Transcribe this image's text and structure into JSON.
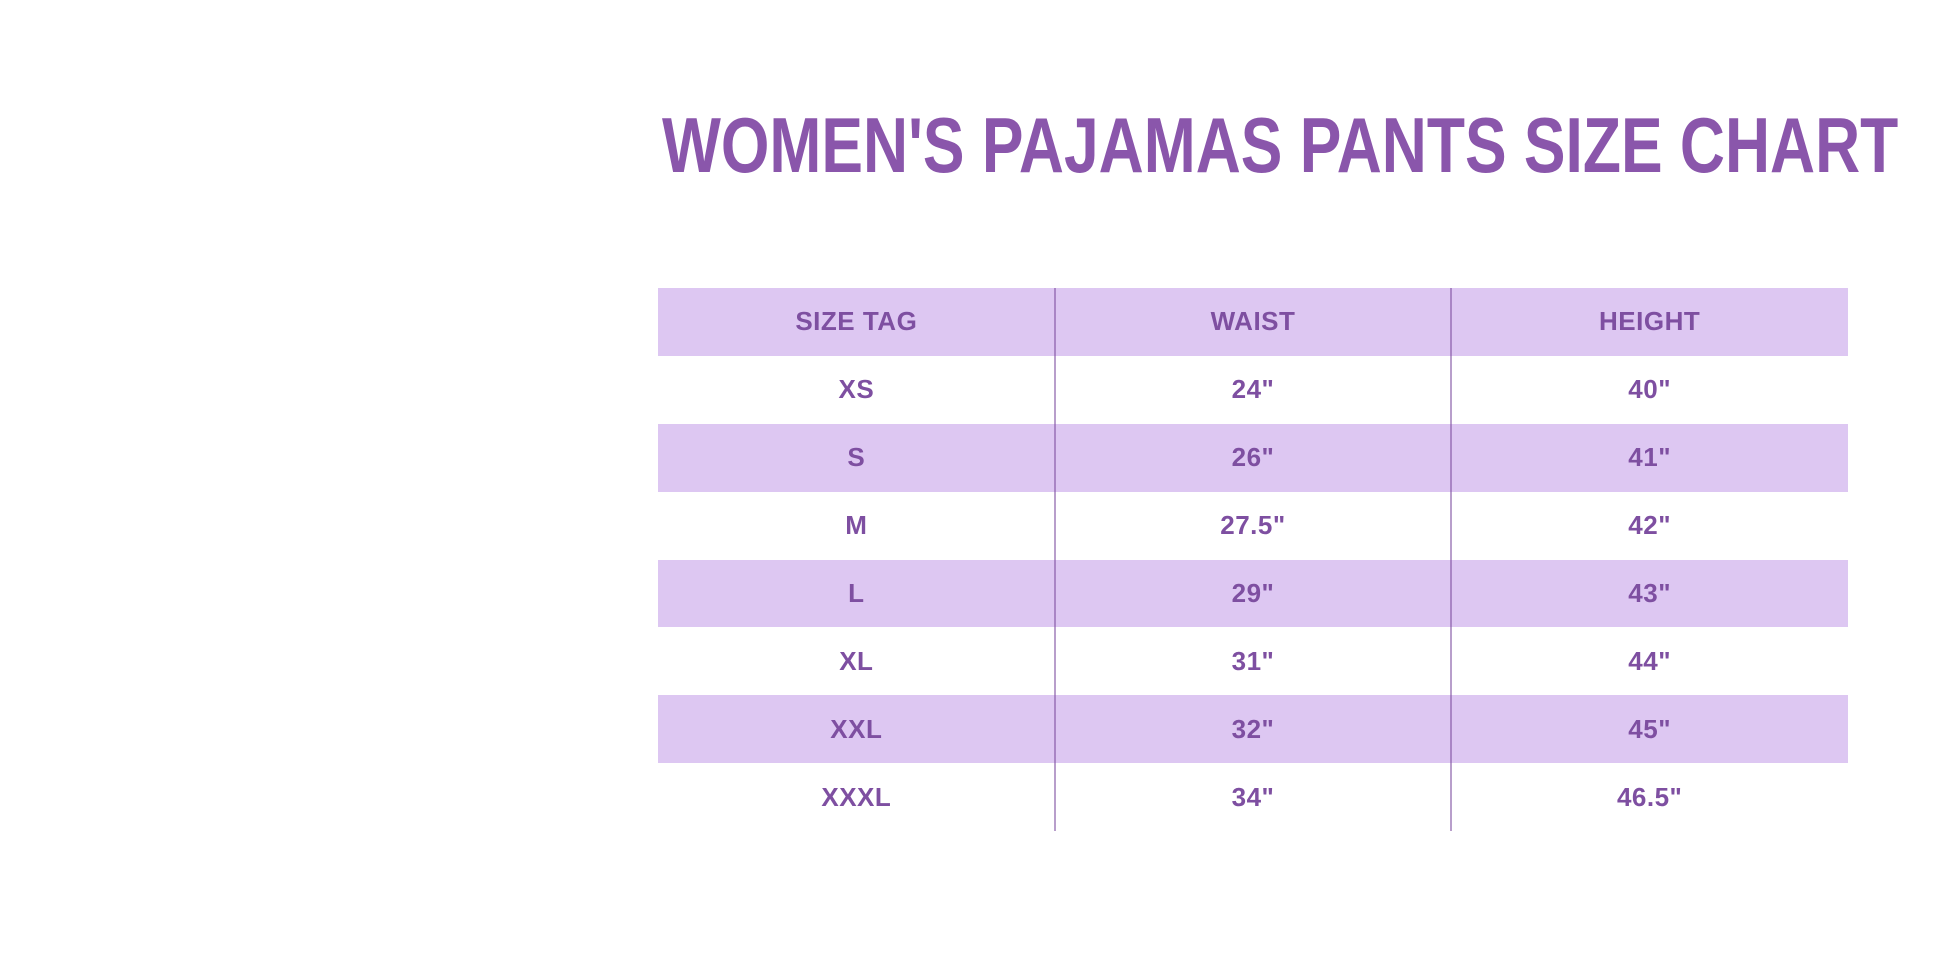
{
  "page": {
    "background_color": "#ffffff"
  },
  "title": {
    "text": "WOMEN'S PAJAMAS PANTS SIZE CHART",
    "color": "#8a56ab"
  },
  "chart_data": {
    "type": "table",
    "title": "WOMEN'S PAJAMAS PANTS SIZE CHART",
    "columns": [
      "SIZE TAG",
      "WAIST",
      "HEIGHT"
    ],
    "rows": [
      [
        "XS",
        "24\"",
        "40\""
      ],
      [
        "S",
        "26\"",
        "41\""
      ],
      [
        "M",
        "27.5\"",
        "42\""
      ],
      [
        "L",
        "29\"",
        "43\""
      ],
      [
        "XL",
        "31\"",
        "44\""
      ],
      [
        "XXL",
        "32\"",
        "45\""
      ],
      [
        "XXXL",
        "34\"",
        "46.5\""
      ]
    ],
    "layout": {
      "header_background": "#ddc7f2",
      "alternating_row_background": "#ddc7f2",
      "row_text_color": "#7e4fa1",
      "column_divider_color": "#7e4fa1",
      "grid": "vertical-dividers-only"
    }
  }
}
